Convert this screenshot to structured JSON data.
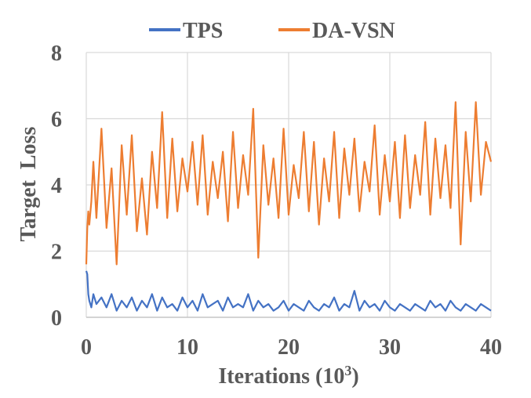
{
  "chart_data": {
    "type": "line",
    "xlabel_main": "Iterations (10",
    "xlabel_sup": "3",
    "xlabel_end": ")",
    "ylabel": "Target  Loss",
    "xlim": [
      0,
      40
    ],
    "ylim": [
      0,
      8
    ],
    "x_ticks": [
      "0",
      "10",
      "20",
      "30",
      "40"
    ],
    "y_ticks": [
      "0",
      "2",
      "4",
      "6",
      "8"
    ],
    "grid": true,
    "legend_position": "top",
    "series": [
      {
        "name": "TPS",
        "color": "#4472C4",
        "x": [
          0,
          0.1,
          0.2,
          0.3,
          0.5,
          0.7,
          1,
          1.5,
          2,
          2.5,
          3,
          3.5,
          4,
          4.5,
          5,
          5.5,
          6,
          6.5,
          7,
          7.5,
          8,
          8.5,
          9,
          9.5,
          10,
          10.5,
          11,
          11.5,
          12,
          12.5,
          13,
          13.5,
          14,
          14.5,
          15,
          15.5,
          16,
          16.5,
          17,
          17.5,
          18,
          18.5,
          19,
          19.5,
          20,
          20.5,
          21,
          21.5,
          22,
          22.5,
          23,
          23.5,
          24,
          24.5,
          25,
          25.5,
          26,
          26.5,
          27,
          27.5,
          28,
          28.5,
          29,
          29.5,
          30,
          30.5,
          31,
          31.5,
          32,
          32.5,
          33,
          33.5,
          34,
          34.5,
          35,
          35.5,
          36,
          36.5,
          37,
          37.5,
          38,
          38.5,
          39,
          39.5,
          40
        ],
        "y": [
          1.4,
          1.3,
          0.7,
          0.5,
          0.3,
          0.7,
          0.4,
          0.6,
          0.3,
          0.7,
          0.2,
          0.5,
          0.3,
          0.6,
          0.2,
          0.5,
          0.3,
          0.7,
          0.2,
          0.6,
          0.3,
          0.4,
          0.2,
          0.6,
          0.3,
          0.5,
          0.2,
          0.7,
          0.3,
          0.4,
          0.5,
          0.2,
          0.6,
          0.3,
          0.4,
          0.3,
          0.7,
          0.2,
          0.5,
          0.3,
          0.4,
          0.2,
          0.3,
          0.5,
          0.2,
          0.4,
          0.3,
          0.2,
          0.5,
          0.3,
          0.2,
          0.4,
          0.3,
          0.6,
          0.2,
          0.4,
          0.3,
          0.8,
          0.2,
          0.5,
          0.3,
          0.4,
          0.2,
          0.5,
          0.3,
          0.2,
          0.4,
          0.3,
          0.2,
          0.4,
          0.3,
          0.2,
          0.5,
          0.3,
          0.4,
          0.2,
          0.5,
          0.3,
          0.2,
          0.4,
          0.3,
          0.2,
          0.4,
          0.3,
          0.2
        ]
      },
      {
        "name": "DA-VSN",
        "color": "#ED7D31",
        "x": [
          0,
          0.1,
          0.2,
          0.3,
          0.5,
          0.7,
          1,
          1.5,
          2,
          2.5,
          3,
          3.5,
          4,
          4.5,
          5,
          5.5,
          6,
          6.5,
          7,
          7.5,
          8,
          8.5,
          9,
          9.5,
          10,
          10.5,
          11,
          11.5,
          12,
          12.5,
          13,
          13.5,
          14,
          14.5,
          15,
          15.5,
          16,
          16.5,
          17,
          17.5,
          18,
          18.5,
          19,
          19.5,
          20,
          20.5,
          21,
          21.5,
          22,
          22.5,
          23,
          23.5,
          24,
          24.5,
          25,
          25.5,
          26,
          26.5,
          27,
          27.5,
          28,
          28.5,
          29,
          29.5,
          30,
          30.5,
          31,
          31.5,
          32,
          32.5,
          33,
          33.5,
          34,
          34.5,
          35,
          35.5,
          36,
          36.5,
          37,
          37.5,
          38,
          38.5,
          39,
          39.5,
          40
        ],
        "y": [
          1.6,
          2.7,
          3.2,
          2.8,
          3.5,
          4.7,
          3.0,
          5.7,
          2.7,
          4.5,
          1.6,
          5.2,
          3.1,
          5.5,
          2.6,
          4.2,
          2.5,
          5.0,
          3.3,
          6.2,
          3.0,
          5.4,
          3.2,
          4.8,
          3.8,
          5.3,
          3.4,
          5.5,
          3.1,
          4.7,
          3.6,
          5.0,
          2.9,
          5.6,
          3.3,
          4.9,
          3.7,
          6.3,
          1.8,
          5.2,
          3.4,
          4.8,
          3.0,
          5.7,
          3.1,
          4.6,
          3.6,
          5.6,
          3.2,
          5.3,
          2.8,
          4.8,
          3.5,
          5.6,
          3.0,
          5.1,
          3.7,
          5.4,
          3.2,
          4.7,
          3.8,
          5.8,
          3.1,
          4.9,
          3.5,
          5.3,
          3.0,
          5.5,
          3.3,
          4.9,
          3.7,
          5.9,
          3.1,
          5.4,
          3.6,
          5.2,
          3.3,
          6.5,
          2.2,
          5.6,
          3.5,
          6.5,
          3.7,
          5.3,
          4.7
        ]
      }
    ]
  }
}
